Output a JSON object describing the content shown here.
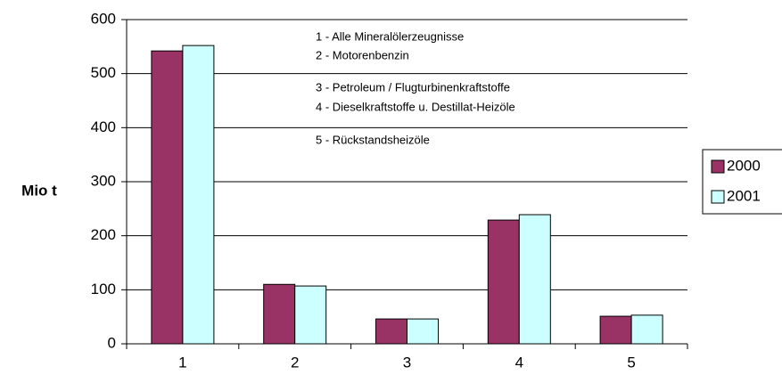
{
  "chart_data": {
    "type": "bar",
    "y_label": "Mio t",
    "categories": [
      "1",
      "2",
      "3",
      "4",
      "5"
    ],
    "series": [
      {
        "name": "2000",
        "color": "#993366",
        "values": [
          542,
          110,
          46,
          229,
          51
        ]
      },
      {
        "name": "2001",
        "color": "#ccffff",
        "values": [
          552,
          107,
          46,
          239,
          53
        ]
      }
    ],
    "ylim": [
      0,
      600
    ],
    "yticks": [
      0,
      100,
      200,
      300,
      400,
      500,
      600
    ],
    "grid": true,
    "legend": "right",
    "annotations": [
      "1 - Alle Mineralölerzeugnisse",
      "2 - Motorenbenzin",
      "3 - Petroleum / Flugturbinenkraftstoffe",
      "4 - Dieselkraftstoffe u. Destillat-Heizöle",
      "5 - Rückstandsheizöle"
    ]
  }
}
